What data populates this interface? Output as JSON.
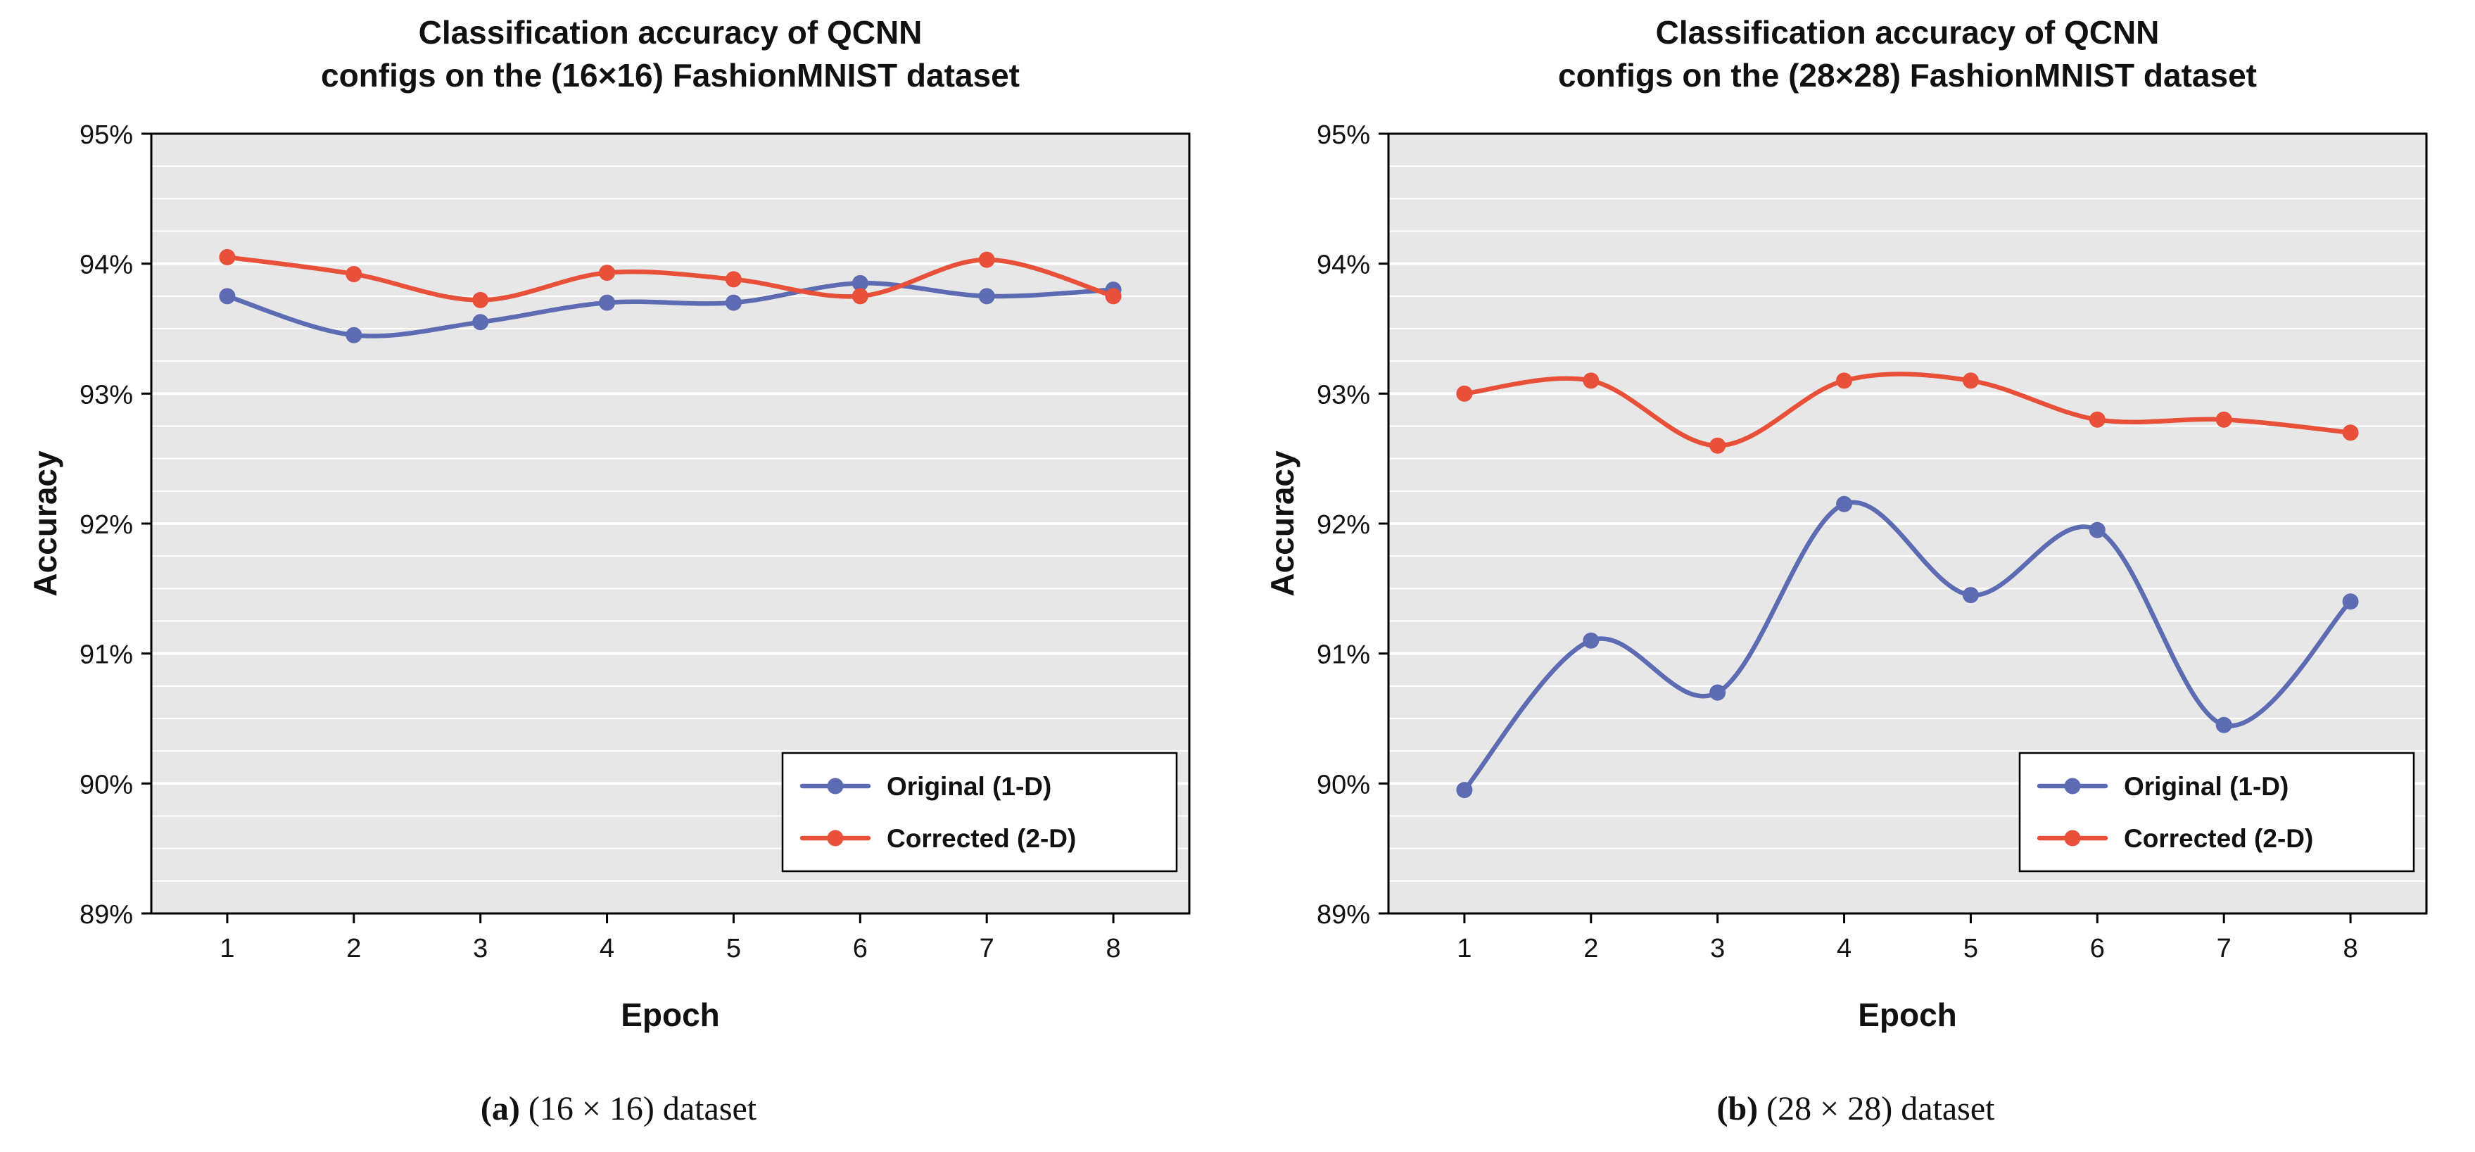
{
  "colors": {
    "original_series": "#5c6bb2",
    "corrected_series": "#e8503a",
    "plot_background": "#e7e7e7",
    "gridline": "#ffffff",
    "frame": "#000000",
    "text": "#111111"
  },
  "charts": [
    {
      "title": "Classification accuracy of QCNN\nconfigs on the (16×16) FashionMNIST dataset",
      "caption_label": "(a)",
      "caption_text": " (16 × 16) dataset",
      "chart_data": {
        "type": "line",
        "x": [
          1,
          2,
          3,
          4,
          5,
          6,
          7,
          8
        ],
        "xlabel": "Epoch",
        "ylabel": "Accuracy",
        "ylim": [
          89,
          95
        ],
        "ytick_step": 1,
        "ytick_format": "percent",
        "minor_ytick_step": 0.25,
        "grid": "horizontal",
        "legend_position": "bottom-right",
        "series": [
          {
            "name": "Original (1-D)",
            "color": "#5c6bb2",
            "values": [
              93.75,
              93.45,
              93.55,
              93.7,
              93.7,
              93.85,
              93.75,
              93.8
            ]
          },
          {
            "name": "Corrected (2-D)",
            "color": "#e8503a",
            "values": [
              94.05,
              93.92,
              93.72,
              93.93,
              93.88,
              93.75,
              94.03,
              93.75
            ]
          }
        ]
      }
    },
    {
      "title": "Classification accuracy of QCNN\nconfigs on the (28×28) FashionMNIST dataset",
      "caption_label": "(b)",
      "caption_text": " (28 × 28) dataset",
      "chart_data": {
        "type": "line",
        "x": [
          1,
          2,
          3,
          4,
          5,
          6,
          7,
          8
        ],
        "xlabel": "Epoch",
        "ylabel": "Accuracy",
        "ylim": [
          89,
          95
        ],
        "ytick_step": 1,
        "ytick_format": "percent",
        "minor_ytick_step": 0.25,
        "grid": "horizontal",
        "legend_position": "bottom-right",
        "series": [
          {
            "name": "Original (1-D)",
            "color": "#5c6bb2",
            "values": [
              89.95,
              91.1,
              90.7,
              92.15,
              91.45,
              91.95,
              90.45,
              91.4
            ]
          },
          {
            "name": "Corrected (2-D)",
            "color": "#e8503a",
            "values": [
              93.0,
              93.1,
              92.6,
              93.1,
              93.1,
              92.8,
              92.8,
              92.7
            ]
          }
        ]
      }
    }
  ]
}
